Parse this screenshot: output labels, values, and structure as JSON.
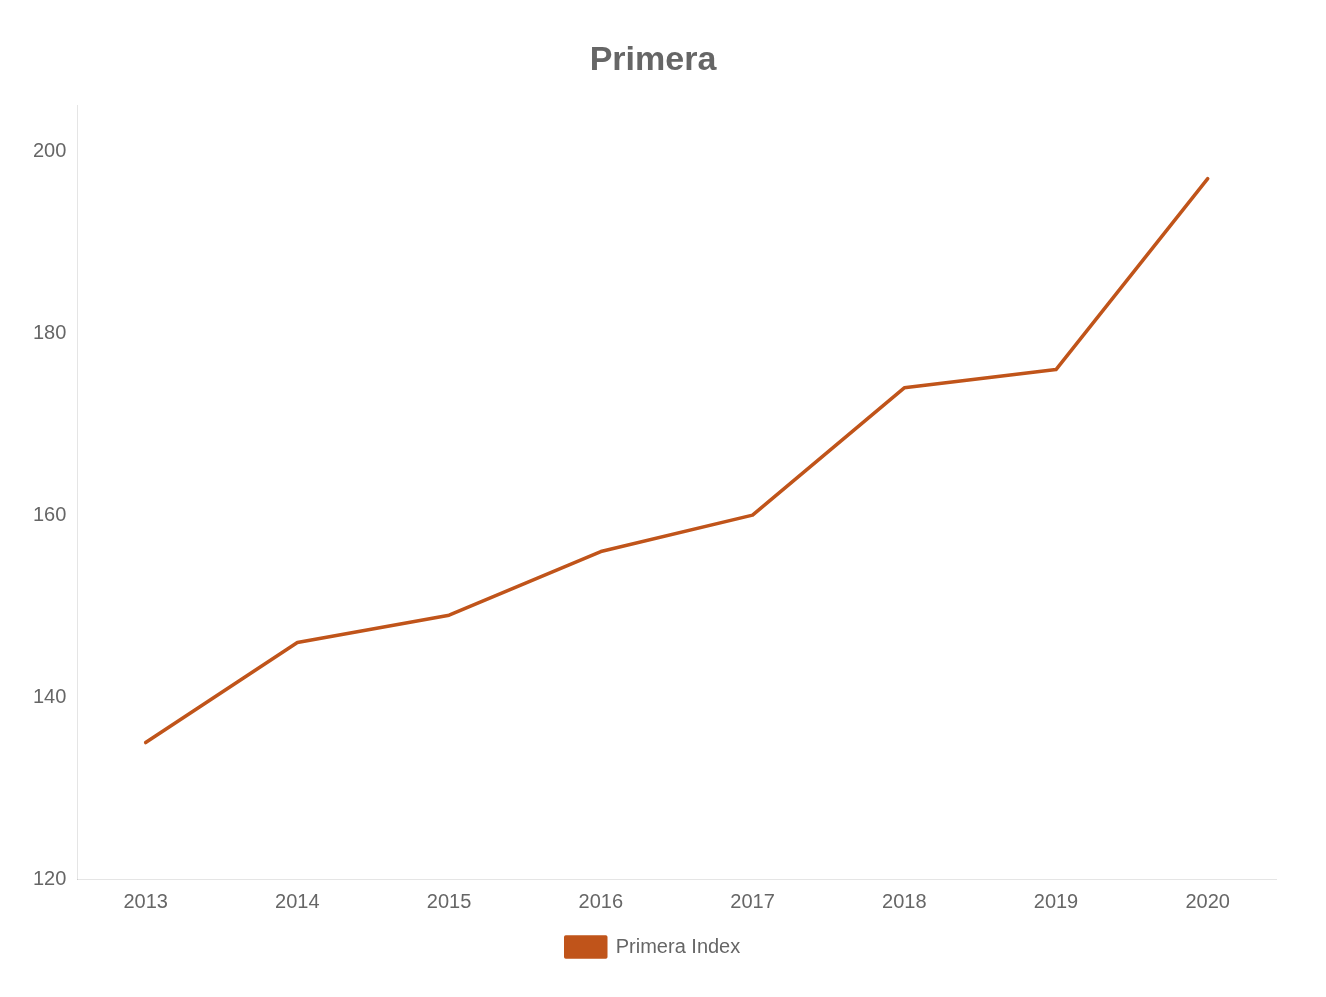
{
  "chart_data": {
    "type": "line",
    "title": "Primera",
    "x": [
      2013,
      2014,
      2015,
      2016,
      2017,
      2018,
      2019,
      2020
    ],
    "series": [
      {
        "name": "Primera Index",
        "color": "#C0541A",
        "values": [
          135,
          146,
          149,
          156,
          160,
          174,
          176,
          197
        ]
      }
    ],
    "xlim": [
      2012.55,
      2020.45
    ],
    "xticks": [
      2013,
      2014,
      2015,
      2016,
      2017,
      2018,
      2019,
      2020
    ],
    "ylim": [
      120,
      205
    ],
    "yticks": [
      120,
      140,
      160,
      180,
      200
    ],
    "grid": false,
    "legend": "bottom"
  }
}
